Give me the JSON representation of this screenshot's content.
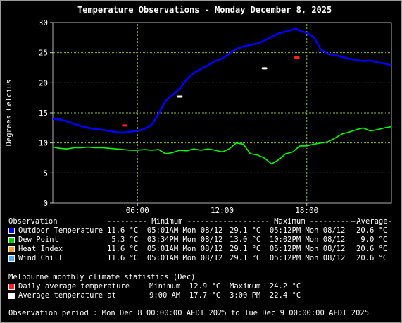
{
  "chart_data": {
    "type": "line",
    "title": "Temperature Observations - Monday December 8, 2025",
    "ylabel": "Degrees Celcius",
    "xlabel": "",
    "xlim": [
      0,
      24
    ],
    "ylim": [
      0,
      30
    ],
    "x_ticks": [
      {
        "x": 6,
        "label": "06:00"
      },
      {
        "x": 12,
        "label": "12:00"
      },
      {
        "x": 18,
        "label": "18:00"
      }
    ],
    "y_ticks": [
      0,
      5,
      10,
      15,
      20,
      25,
      30
    ],
    "grid": true,
    "series": [
      {
        "name": "Outdoor Temperature",
        "color": "#0000ff",
        "x": [
          0,
          0.5,
          1,
          1.5,
          2,
          2.5,
          3,
          3.5,
          4,
          4.5,
          5,
          5.5,
          6,
          6.5,
          7,
          7.5,
          8,
          8.5,
          9,
          9.5,
          10,
          10.5,
          11,
          11.5,
          12,
          12.5,
          13,
          13.5,
          14,
          14.5,
          15,
          15.5,
          16,
          16.5,
          17,
          17.2,
          17.5,
          18,
          18.5,
          19,
          19.5,
          20,
          20.5,
          21,
          21.5,
          22,
          22.5,
          23,
          23.5,
          24
        ],
        "y": [
          14.0,
          13.9,
          13.6,
          13.2,
          12.8,
          12.5,
          12.3,
          12.2,
          12.0,
          11.8,
          11.7,
          11.9,
          12.0,
          12.3,
          13.0,
          14.8,
          17.0,
          18.0,
          19.0,
          20.6,
          21.6,
          22.3,
          22.9,
          23.6,
          24.0,
          24.8,
          25.6,
          26.0,
          26.3,
          26.5,
          27.0,
          27.6,
          28.2,
          28.5,
          28.8,
          29.1,
          28.6,
          28.3,
          27.6,
          25.5,
          24.8,
          24.6,
          24.3,
          24.0,
          23.8,
          23.6,
          23.7,
          23.4,
          23.2,
          22.9
        ]
      },
      {
        "name": "Dew Point",
        "color": "#00ff00",
        "x": [
          0,
          0.5,
          1,
          1.5,
          2,
          2.5,
          3,
          3.5,
          4,
          4.5,
          5,
          5.5,
          6,
          6.5,
          7,
          7.5,
          8,
          8.5,
          9,
          9.5,
          10,
          10.5,
          11,
          11.5,
          12,
          12.5,
          13,
          13.5,
          14,
          14.5,
          15,
          15.5,
          16,
          16.5,
          17,
          17.5,
          18,
          18.5,
          19,
          19.5,
          20,
          20.5,
          21,
          21.5,
          22,
          22.5,
          23,
          23.5,
          24
        ],
        "y": [
          9.3,
          9.1,
          9.0,
          9.2,
          9.2,
          9.3,
          9.2,
          9.2,
          9.1,
          9.0,
          8.9,
          8.8,
          8.8,
          8.9,
          8.8,
          8.9,
          8.2,
          8.4,
          8.8,
          8.7,
          9.0,
          8.8,
          9.0,
          8.8,
          8.5,
          9.0,
          10.0,
          9.8,
          8.2,
          8.0,
          7.5,
          6.5,
          7.2,
          8.2,
          8.5,
          9.5,
          9.5,
          9.8,
          10.0,
          10.2,
          10.8,
          11.5,
          11.8,
          12.2,
          12.5,
          12.0,
          12.2,
          12.5,
          12.7
        ]
      }
    ],
    "markers": [
      {
        "label": "Daily average temperature",
        "color": "#ff2020",
        "points": [
          {
            "x": 5.1,
            "y": 12.9
          },
          {
            "x": 17.3,
            "y": 24.2
          }
        ]
      },
      {
        "label": "Average temperature at",
        "color": "#ffffff",
        "points": [
          {
            "x": 9.0,
            "y": 17.7
          },
          {
            "x": 15.0,
            "y": 22.4
          }
        ]
      }
    ],
    "table": {
      "header": [
        "Observation",
        "--------- Minimum ----------",
        "--------- Maximum ----------",
        "-Average-"
      ],
      "rows": [
        {
          "name": "Outdoor Temperature",
          "color": "#0000ff",
          "min": "11.6 °C  05:01AM Mon 08/12",
          "max": "29.1 °C  05:12PM Mon 08/12",
          "avg": "20.6 °C"
        },
        {
          "name": "Dew Point",
          "color": "#00cc00",
          "min": " 5.3 °C  03:34PM Mon 08/12",
          "max": "13.0 °C  10:02PM Mon 08/12",
          "avg": " 9.0 °C"
        },
        {
          "name": "Heat Index",
          "color": "#ff9933",
          "min": "11.6 °C  05:01AM Mon 08/12",
          "max": "29.1 °C  05:12PM Mon 08/12",
          "avg": "20.6 °C"
        },
        {
          "name": "Wind Chill",
          "color": "#55aaff",
          "min": "11.6 °C  05:01AM Mon 08/12",
          "max": "29.1 °C  05:12PM Mon 08/12",
          "avg": "20.6 °C"
        }
      ]
    },
    "climate": {
      "heading": "Melbourne monthly climate statistics (Dec)",
      "rows": [
        {
          "label": "Daily average temperature",
          "color": "#ff2020",
          "left": "Minimum  12.9 °C",
          "right": "Maximum  24.2 °C"
        },
        {
          "label": "Average temperature at",
          "color": "#ffffff",
          "left": "9:00 AM  17.7 °C",
          "right": "3:00 PM  22.4 °C"
        }
      ]
    },
    "period": "Observation period : Mon Dec 8 00:00:00 AEDT 2025 to Tue Dec 9 00:00:00 AEDT 2025"
  }
}
